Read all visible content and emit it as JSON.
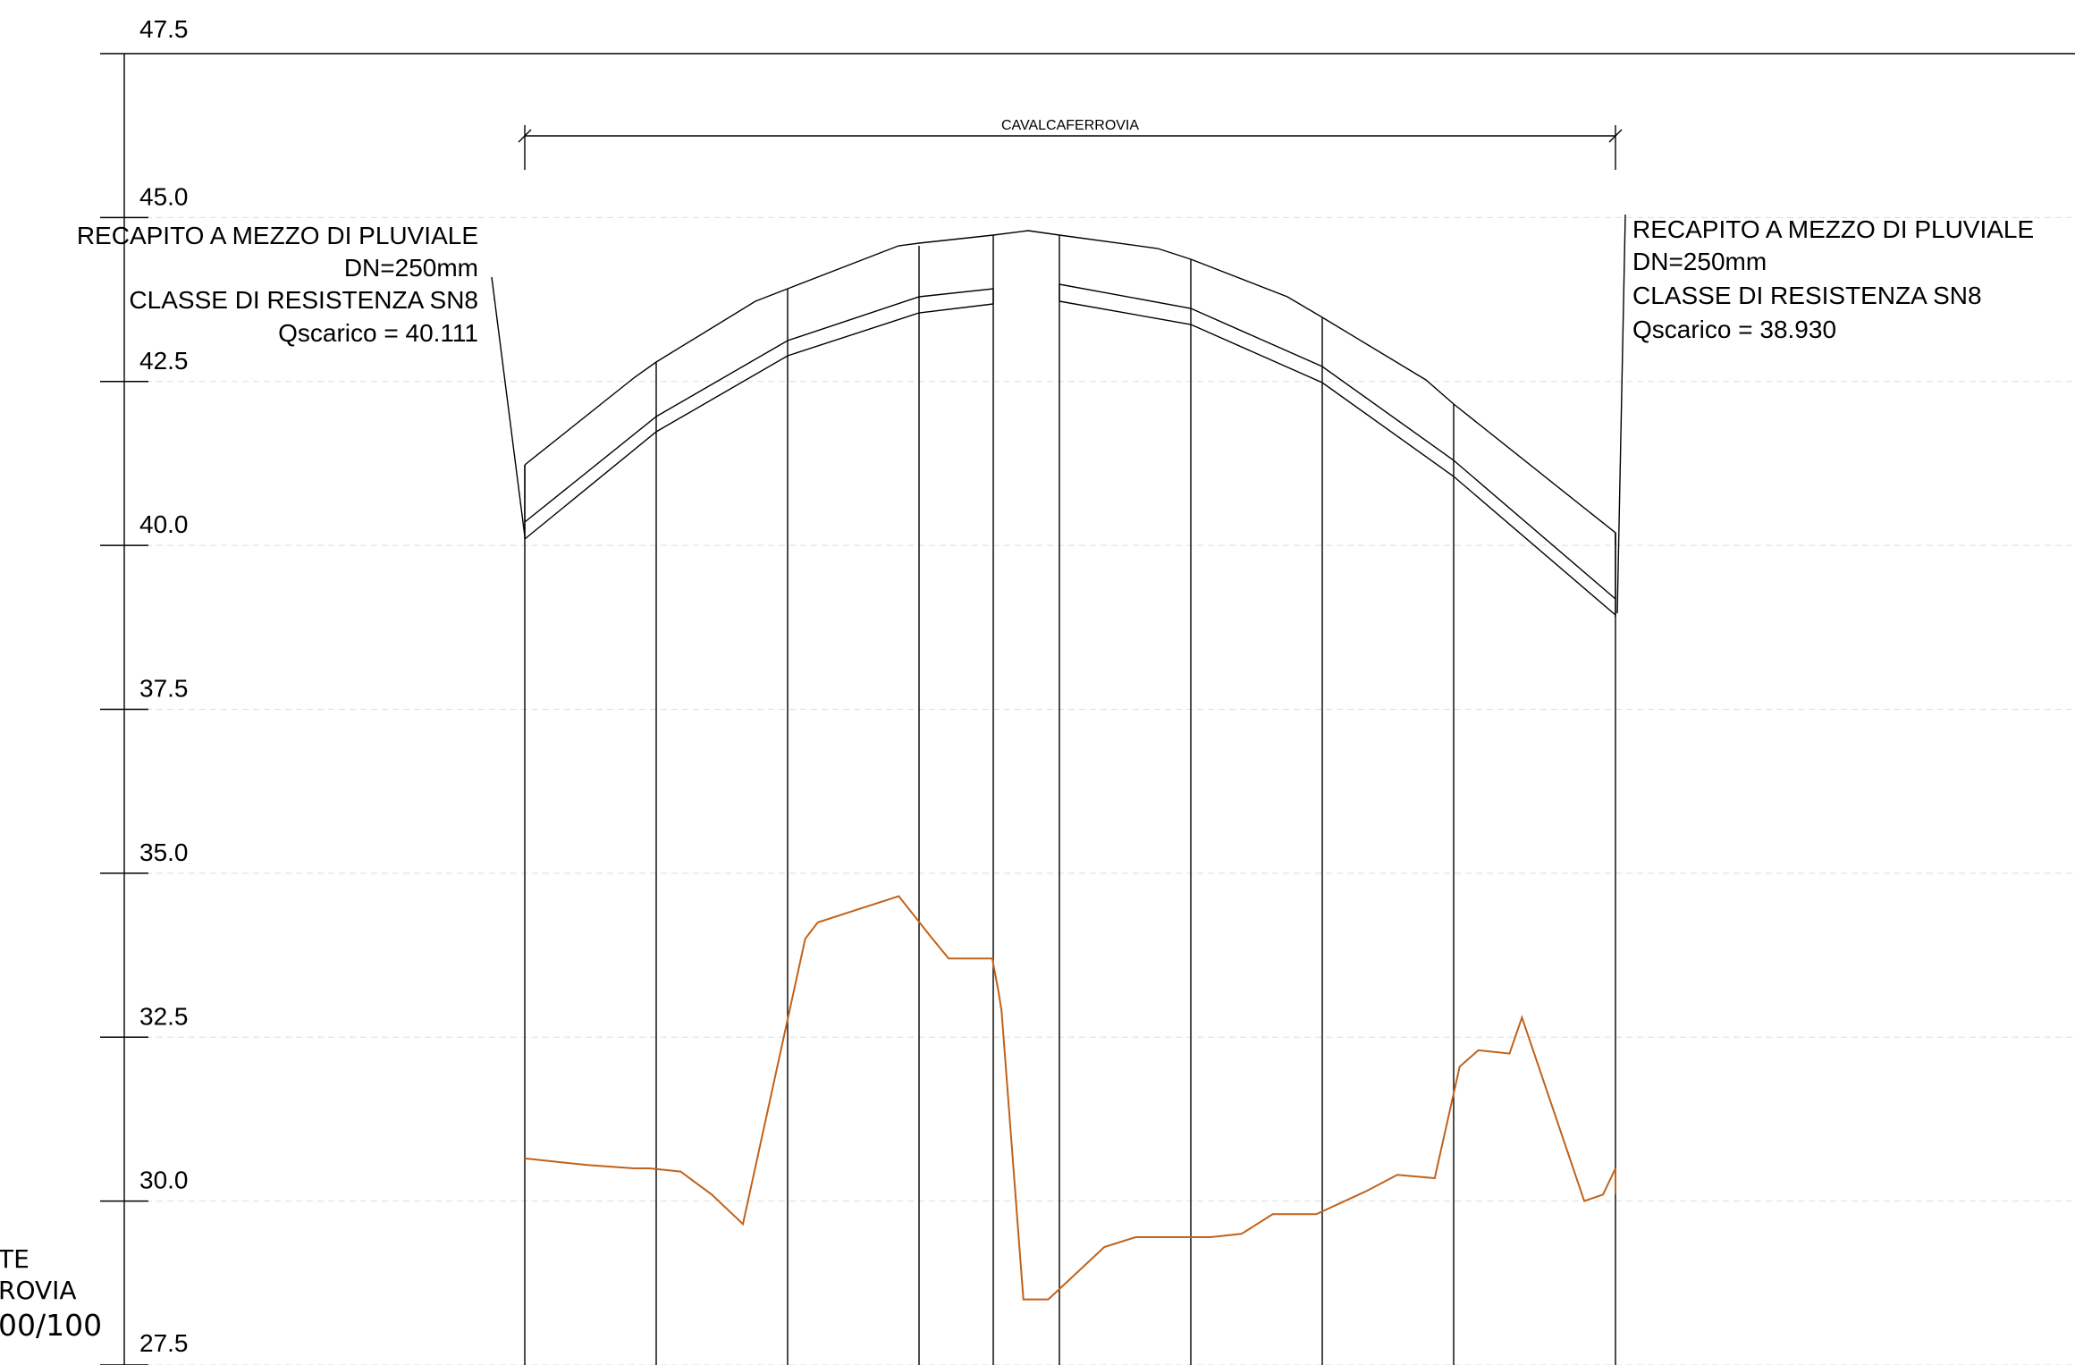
{
  "chart_data": {
    "type": "line",
    "y_ticks": [
      "47.5",
      "45.0",
      "42.5",
      "40.0",
      "37.5",
      "35.0",
      "32.5",
      "30.0",
      "27.5"
    ],
    "ylim": [
      27.5,
      47.5
    ],
    "grid": true,
    "dimension_label": "CAVALCAFERROVIA",
    "left_note": {
      "lines": [
        "RECAPITO A MEZZO DI PLUVIALE",
        "DN=250mm",
        "CLASSE DI RESISTENZA SN8",
        "Qscarico = 40.111"
      ]
    },
    "right_note": {
      "lines": [
        "RECAPITO A MEZZO DI PLUVIALE",
        "DN=250mm",
        "CLASSE DI RESISTENZA SN8",
        "Qscarico = 38.930"
      ]
    },
    "side_label_lines": [
      "TE",
      "ROVIA",
      "00/100"
    ],
    "terrain_color": "#c0621b",
    "line_color": "#000000",
    "deck_top_elevations": [
      41.15,
      42.55,
      43.55,
      44.4,
      44.6,
      44.75,
      44.6,
      44.4,
      43.5,
      42.65,
      42.0,
      40.1
    ],
    "deck_mid_elevations": [
      40.3,
      41.9,
      42.95,
      43.75,
      43.95,
      43.95,
      43.5,
      42.65,
      41.35,
      39.1
    ],
    "deck_bot_elevations": [
      40.05,
      41.65,
      42.7,
      43.5,
      43.7,
      43.75,
      43.3,
      42.4,
      41.05,
      38.85
    ],
    "terrain_points": [
      [
        0,
        30.65
      ],
      [
        1.0,
        30.55
      ],
      [
        1.75,
        30.5
      ],
      [
        2.0,
        30.5
      ],
      [
        2.5,
        30.45
      ],
      [
        3.0,
        30.1
      ],
      [
        3.5,
        29.65
      ],
      [
        4.5,
        34.0
      ],
      [
        4.7,
        34.25
      ],
      [
        6.0,
        34.65
      ],
      [
        6.5,
        34.05
      ],
      [
        6.8,
        33.7
      ],
      [
        7.5,
        33.7
      ],
      [
        7.6,
        33.2
      ],
      [
        7.65,
        32.9
      ],
      [
        8.0,
        28.5
      ],
      [
        8.4,
        28.5
      ],
      [
        9.3,
        29.3
      ],
      [
        9.8,
        29.45
      ],
      [
        11.0,
        29.45
      ],
      [
        11.5,
        29.5
      ],
      [
        12.0,
        29.8
      ],
      [
        12.7,
        29.8
      ],
      [
        13.5,
        30.15
      ],
      [
        14.0,
        30.4
      ],
      [
        14.6,
        30.35
      ],
      [
        15.0,
        32.05
      ],
      [
        15.3,
        32.3
      ],
      [
        15.8,
        32.25
      ],
      [
        16.0,
        32.8
      ],
      [
        17.0,
        30.0
      ],
      [
        17.3,
        30.1
      ],
      [
        17.5,
        30.5
      ],
      [
        17.5,
        30.1
      ]
    ]
  }
}
